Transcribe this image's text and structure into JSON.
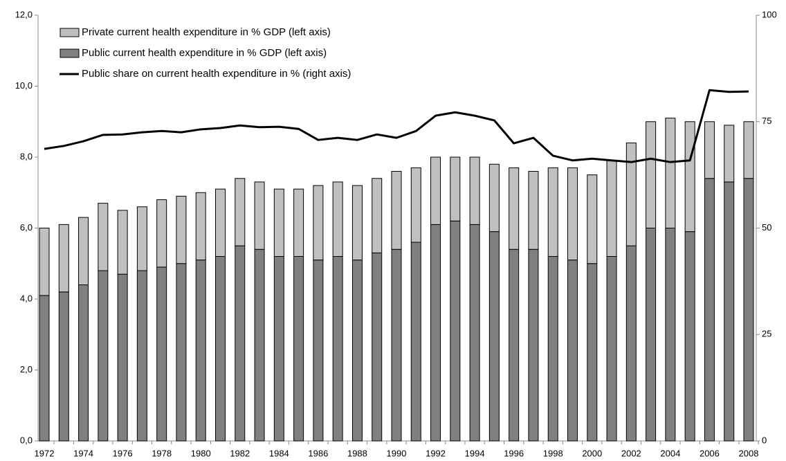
{
  "chart_data": {
    "type": "stacked-bar-line",
    "categories": [
      "1972",
      null,
      "1974",
      null,
      "1976",
      null,
      "1978",
      null,
      "1980",
      null,
      "1982",
      null,
      "1984",
      null,
      "1986",
      null,
      "1988",
      null,
      "1990",
      null,
      "1992",
      null,
      "1994",
      null,
      "1996",
      null,
      "1998",
      null,
      "2000",
      null,
      "2002",
      null,
      "2004",
      null,
      "2006",
      null,
      "2008"
    ],
    "series": [
      {
        "name": "Public current health expenditure in % GDP (left axis)",
        "color": "#808080",
        "stack": true,
        "values": [
          4.1,
          4.2,
          4.4,
          4.8,
          4.7,
          4.8,
          4.9,
          5.0,
          5.1,
          5.2,
          5.5,
          5.4,
          5.2,
          5.2,
          5.1,
          5.2,
          5.1,
          5.3,
          5.4,
          5.6,
          6.1,
          6.2,
          6.1,
          5.9,
          5.4,
          5.4,
          5.2,
          5.1,
          5.0,
          5.2,
          5.5,
          6.0,
          6.0,
          5.9,
          7.4,
          7.3,
          7.4
        ]
      },
      {
        "name": "Private current health expenditure in % GDP (left axis)",
        "color": "#c0c0c0",
        "stack": true,
        "values": [
          1.9,
          1.9,
          1.9,
          1.9,
          1.8,
          1.8,
          1.9,
          1.9,
          1.9,
          1.9,
          1.9,
          1.9,
          1.9,
          1.9,
          2.1,
          2.1,
          2.1,
          2.1,
          2.2,
          2.1,
          1.9,
          1.8,
          1.9,
          1.9,
          2.3,
          2.2,
          2.5,
          2.6,
          2.5,
          2.7,
          2.9,
          3.0,
          3.1,
          3.1,
          1.6,
          1.6,
          1.6
        ]
      },
      {
        "name": "Public share on current health expenditure in % (right axis)",
        "color": "#000000",
        "axis": "y2",
        "values": [
          68.6,
          69.3,
          70.4,
          71.9,
          72.0,
          72.5,
          72.8,
          72.5,
          73.2,
          73.5,
          74.1,
          73.7,
          73.8,
          73.3,
          70.7,
          71.2,
          70.7,
          72.0,
          71.2,
          72.8,
          76.4,
          77.2,
          76.4,
          75.3,
          69.9,
          71.2,
          67.0,
          65.9,
          66.3,
          65.9,
          65.5,
          66.3,
          65.5,
          65.9,
          82.4,
          82.0,
          82.1
        ]
      }
    ],
    "legend_order": [
      1,
      0,
      2
    ],
    "ylim": [
      0,
      12
    ],
    "yticks": [
      {
        "value": 0,
        "label": "0,0"
      },
      {
        "value": 2,
        "label": "2,0"
      },
      {
        "value": 4,
        "label": "4,0"
      },
      {
        "value": 6,
        "label": "6,0"
      },
      {
        "value": 8,
        "label": "8,0"
      },
      {
        "value": 10,
        "label": "10,0"
      },
      {
        "value": 12,
        "label": "12,0"
      }
    ],
    "y2lim": [
      0,
      100
    ],
    "y2ticks": [
      0,
      25,
      50,
      75,
      100
    ]
  }
}
